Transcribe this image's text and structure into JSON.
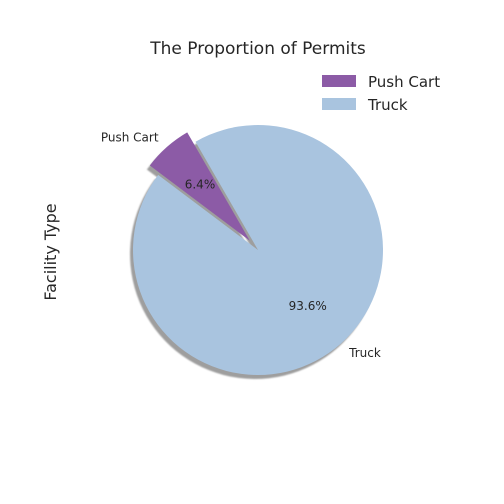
{
  "chart_data": {
    "type": "pie",
    "title": "The Proportion of Permits",
    "ylabel": "Facility Type",
    "slices": [
      {
        "label": "Push Cart",
        "value": 6.4,
        "pct_label": "6.4%",
        "color": "#8c5ba6",
        "exploded": true
      },
      {
        "label": "Truck",
        "value": 93.6,
        "pct_label": "93.6%",
        "color": "#a9c4df",
        "exploded": false
      }
    ],
    "shadow": true,
    "legend": {
      "position": "top-right",
      "entries": [
        "Push Cart",
        "Truck"
      ]
    }
  }
}
